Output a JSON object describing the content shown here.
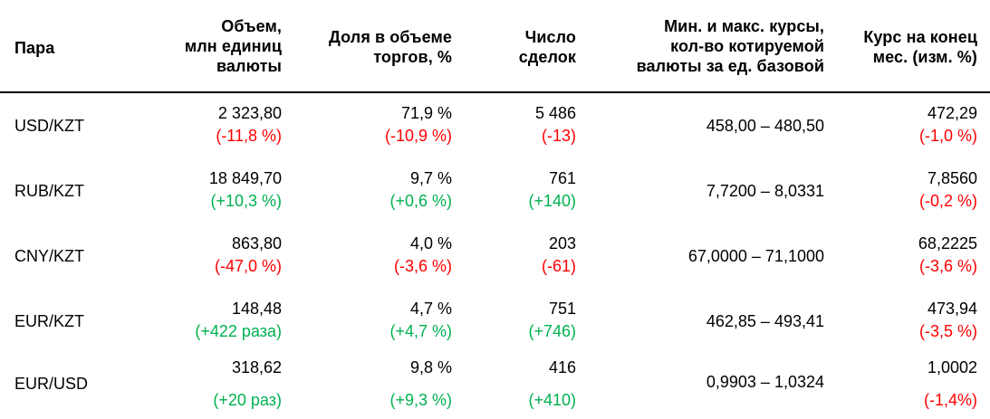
{
  "table": {
    "headers": {
      "pair": "Пара",
      "volume": [
        "Объем,",
        "млн единиц",
        "валюты"
      ],
      "share": [
        "Доля в объеме",
        "торгов, %"
      ],
      "deals": [
        "Число",
        "сделок"
      ],
      "minmax": [
        "Мин. и макс. курсы,",
        "кол-во котируемой",
        "валюты за ед. базовой"
      ],
      "rate": [
        "Курс на конец",
        "мес. (изм. %)"
      ]
    },
    "rows": [
      {
        "pair": "USD/KZT",
        "volume": "2 323,80",
        "volume_change": "(-11,8 %)",
        "volume_sign": "neg",
        "share": "71,9 %",
        "share_change": "(-10,9 %)",
        "share_sign": "neg",
        "deals": "5 486",
        "deals_change": "(-13)",
        "deals_sign": "neg",
        "minmax": "458,00 – 480,50",
        "rate": "472,29",
        "rate_change": "(-1,0 %)",
        "rate_sign": "neg"
      },
      {
        "pair": "RUB/KZT",
        "volume": "18 849,70",
        "volume_change": "(+10,3 %)",
        "volume_sign": "pos",
        "share": "9,7 %",
        "share_change": "(+0,6 %)",
        "share_sign": "pos",
        "deals": "761",
        "deals_change": "(+140)",
        "deals_sign": "pos",
        "minmax": "7,7200 – 8,0331",
        "rate": "7,8560",
        "rate_change": "(-0,2 %)",
        "rate_sign": "neg"
      },
      {
        "pair": "CNY/KZT",
        "volume": "863,80",
        "volume_change": "(-47,0 %)",
        "volume_sign": "neg",
        "share": "4,0 %",
        "share_change": "(-3,6 %)",
        "share_sign": "neg",
        "deals": "203",
        "deals_change": "(-61)",
        "deals_sign": "neg",
        "minmax": "67,0000 – 71,1000",
        "rate": "68,2225",
        "rate_change": "(-3,6 %)",
        "rate_sign": "neg"
      },
      {
        "pair": "EUR/KZT",
        "volume": "148,48",
        "volume_change": "(+422 раза)",
        "volume_sign": "pos",
        "share": "4,7 %",
        "share_change": "(+4,7 %)",
        "share_sign": "pos",
        "deals": "751",
        "deals_change": "(+746)",
        "deals_sign": "pos",
        "minmax": "462,85 – 493,41",
        "rate": "473,94",
        "rate_change": "(-3,5 %)",
        "rate_sign": "neg"
      },
      {
        "pair": "EUR/USD",
        "volume": "318,62",
        "volume_change": "(+20 раз)",
        "volume_sign": "pos",
        "share": "9,8 %",
        "share_change": "(+9,3 %)",
        "share_sign": "pos",
        "deals": "416",
        "deals_change": "(+410)",
        "deals_sign": "pos",
        "minmax": "0,9903 – 1,0324",
        "rate": "1,0002",
        "rate_change": "(-1,4%)",
        "rate_sign": "neg"
      }
    ]
  },
  "colors": {
    "negative": "#ff0000",
    "positive": "#00b050"
  }
}
